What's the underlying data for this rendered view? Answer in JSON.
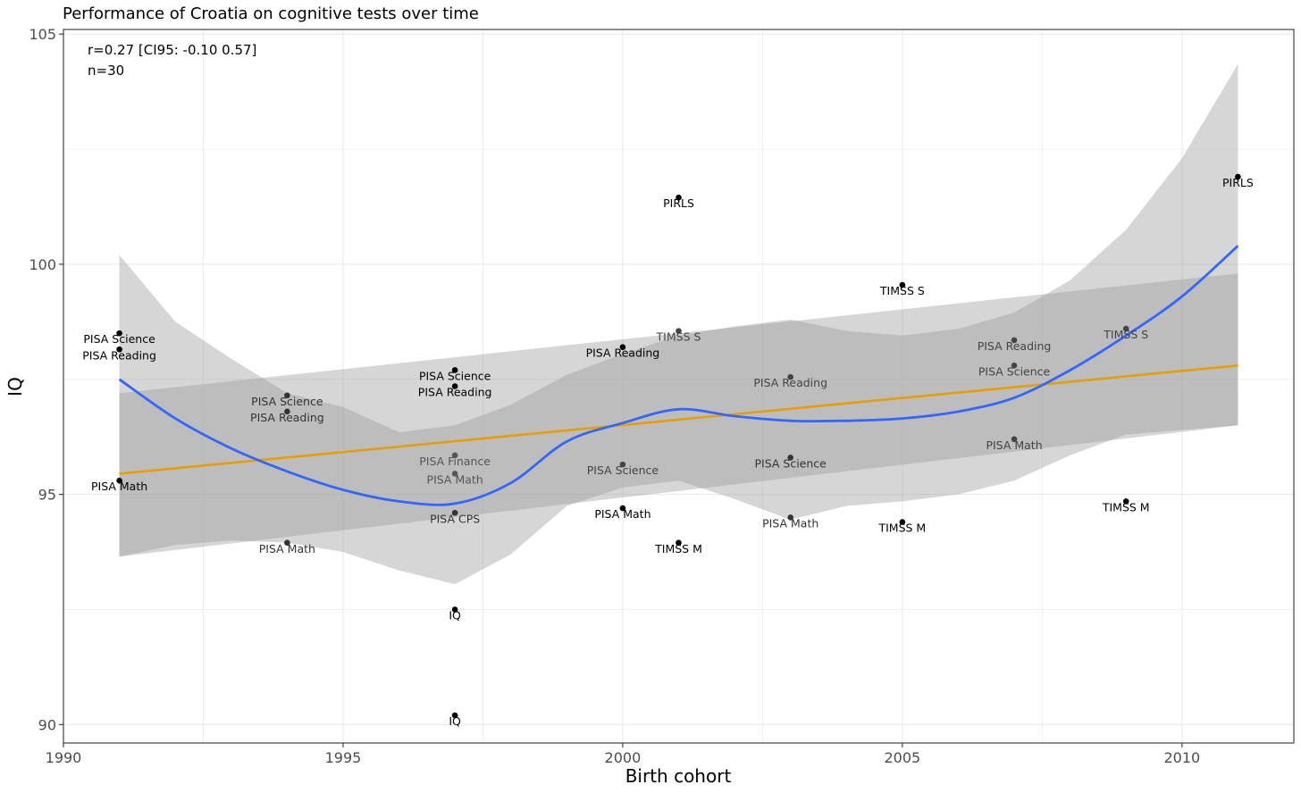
{
  "chart_data": {
    "type": "scatter",
    "title": "Performance of Croatia on cognitive tests over time",
    "xlabel": "Birth cohort",
    "ylabel": "IQ",
    "xlim": [
      1990,
      2012
    ],
    "ylim": [
      89.6,
      105.1
    ],
    "x_ticks": [
      1990,
      1995,
      2000,
      2005,
      2010
    ],
    "y_ticks": [
      90,
      95,
      100,
      105
    ],
    "grid": true,
    "annotations": [
      "r=0.27 [CI95: -0.10 0.57]",
      "n=30"
    ],
    "colors": {
      "linear_fit": "#E69F00",
      "smooth_fit": "#3366FF",
      "ribbon": "#999999",
      "point": "#000000",
      "grid": "#EBEBEB"
    },
    "points": [
      {
        "x": 1991,
        "y": 98.5,
        "label": "PISA Science",
        "shade": "#000000"
      },
      {
        "x": 1991,
        "y": 98.15,
        "label": "PISA Reading",
        "shade": "#000000"
      },
      {
        "x": 1991,
        "y": 95.3,
        "label": "PISA Math",
        "shade": "#000000"
      },
      {
        "x": 1994,
        "y": 97.15,
        "label": "PISA Science",
        "shade": "#333333"
      },
      {
        "x": 1994,
        "y": 96.8,
        "label": "PISA Reading",
        "shade": "#333333"
      },
      {
        "x": 1994,
        "y": 93.95,
        "label": "PISA Math",
        "shade": "#333333"
      },
      {
        "x": 1997,
        "y": 97.7,
        "label": "PISA Science",
        "shade": "#000000"
      },
      {
        "x": 1997,
        "y": 97.35,
        "label": "PISA Reading",
        "shade": "#000000"
      },
      {
        "x": 1997,
        "y": 95.85,
        "label": "PISA Finance",
        "shade": "#555555"
      },
      {
        "x": 1997,
        "y": 95.45,
        "label": "PISA Math",
        "shade": "#555555"
      },
      {
        "x": 1997,
        "y": 94.6,
        "label": "PISA CPS",
        "shade": "#333333"
      },
      {
        "x": 1997,
        "y": 92.5,
        "label": "IQ",
        "shade": "#000000"
      },
      {
        "x": 1997,
        "y": 90.2,
        "label": "IQ",
        "shade": "#000000"
      },
      {
        "x": 2000,
        "y": 98.2,
        "label": "PISA Reading",
        "shade": "#000000"
      },
      {
        "x": 2000,
        "y": 95.65,
        "label": "PISA Science",
        "shade": "#444444"
      },
      {
        "x": 2000,
        "y": 94.7,
        "label": "PISA Math",
        "shade": "#000000"
      },
      {
        "x": 2001,
        "y": 101.45,
        "label": "PIRLS",
        "shade": "#000000"
      },
      {
        "x": 2001,
        "y": 98.55,
        "label": "TIMSS S",
        "shade": "#444444"
      },
      {
        "x": 2001,
        "y": 93.95,
        "label": "TIMSS M",
        "shade": "#000000"
      },
      {
        "x": 2003,
        "y": 97.55,
        "label": "PISA Reading",
        "shade": "#444444"
      },
      {
        "x": 2003,
        "y": 95.8,
        "label": "PISA Science",
        "shade": "#333333"
      },
      {
        "x": 2003,
        "y": 94.5,
        "label": "PISA Math",
        "shade": "#333333"
      },
      {
        "x": 2005,
        "y": 99.55,
        "label": "TIMSS S",
        "shade": "#000000"
      },
      {
        "x": 2005,
        "y": 94.4,
        "label": "TIMSS M",
        "shade": "#000000"
      },
      {
        "x": 2007,
        "y": 98.35,
        "label": "PISA Reading",
        "shade": "#444444"
      },
      {
        "x": 2007,
        "y": 97.8,
        "label": "PISA Science",
        "shade": "#444444"
      },
      {
        "x": 2007,
        "y": 96.2,
        "label": "PISA Math",
        "shade": "#444444"
      },
      {
        "x": 2009,
        "y": 98.6,
        "label": "TIMSS S",
        "shade": "#444444"
      },
      {
        "x": 2009,
        "y": 94.85,
        "label": "TIMSS M",
        "shade": "#000000"
      },
      {
        "x": 2011,
        "y": 101.9,
        "label": "PIRLS",
        "shade": "#000000"
      }
    ],
    "linear_fit": {
      "x": [
        1991,
        2011
      ],
      "y": [
        95.45,
        97.8
      ],
      "ci_lower": [
        93.65,
        96.5
      ],
      "ci_upper": [
        97.2,
        99.8
      ]
    },
    "smooth_fit": {
      "x": [
        1991,
        1992,
        1993,
        1994,
        1995,
        1996,
        1997,
        1998,
        1999,
        2000,
        2001,
        2002,
        2003,
        2004,
        2005,
        2006,
        2007,
        2008,
        2009,
        2010,
        2011
      ],
      "y": [
        97.5,
        96.65,
        96.0,
        95.5,
        95.1,
        94.85,
        94.8,
        95.25,
        96.15,
        96.55,
        96.85,
        96.7,
        96.6,
        96.6,
        96.65,
        96.8,
        97.1,
        97.7,
        98.45,
        99.3,
        100.4
      ],
      "ci_lower": [
        93.65,
        93.9,
        94.0,
        93.95,
        93.75,
        93.35,
        93.05,
        93.7,
        94.75,
        95.15,
        95.3,
        94.9,
        94.45,
        94.75,
        94.85,
        95.0,
        95.3,
        95.85,
        96.3,
        96.4,
        96.5
      ],
      "ci_upper": [
        100.2,
        98.75,
        97.95,
        97.2,
        96.9,
        96.35,
        96.5,
        96.95,
        97.6,
        98.05,
        98.45,
        98.65,
        98.8,
        98.55,
        98.45,
        98.6,
        98.95,
        99.65,
        100.75,
        102.3,
        104.35
      ]
    }
  }
}
